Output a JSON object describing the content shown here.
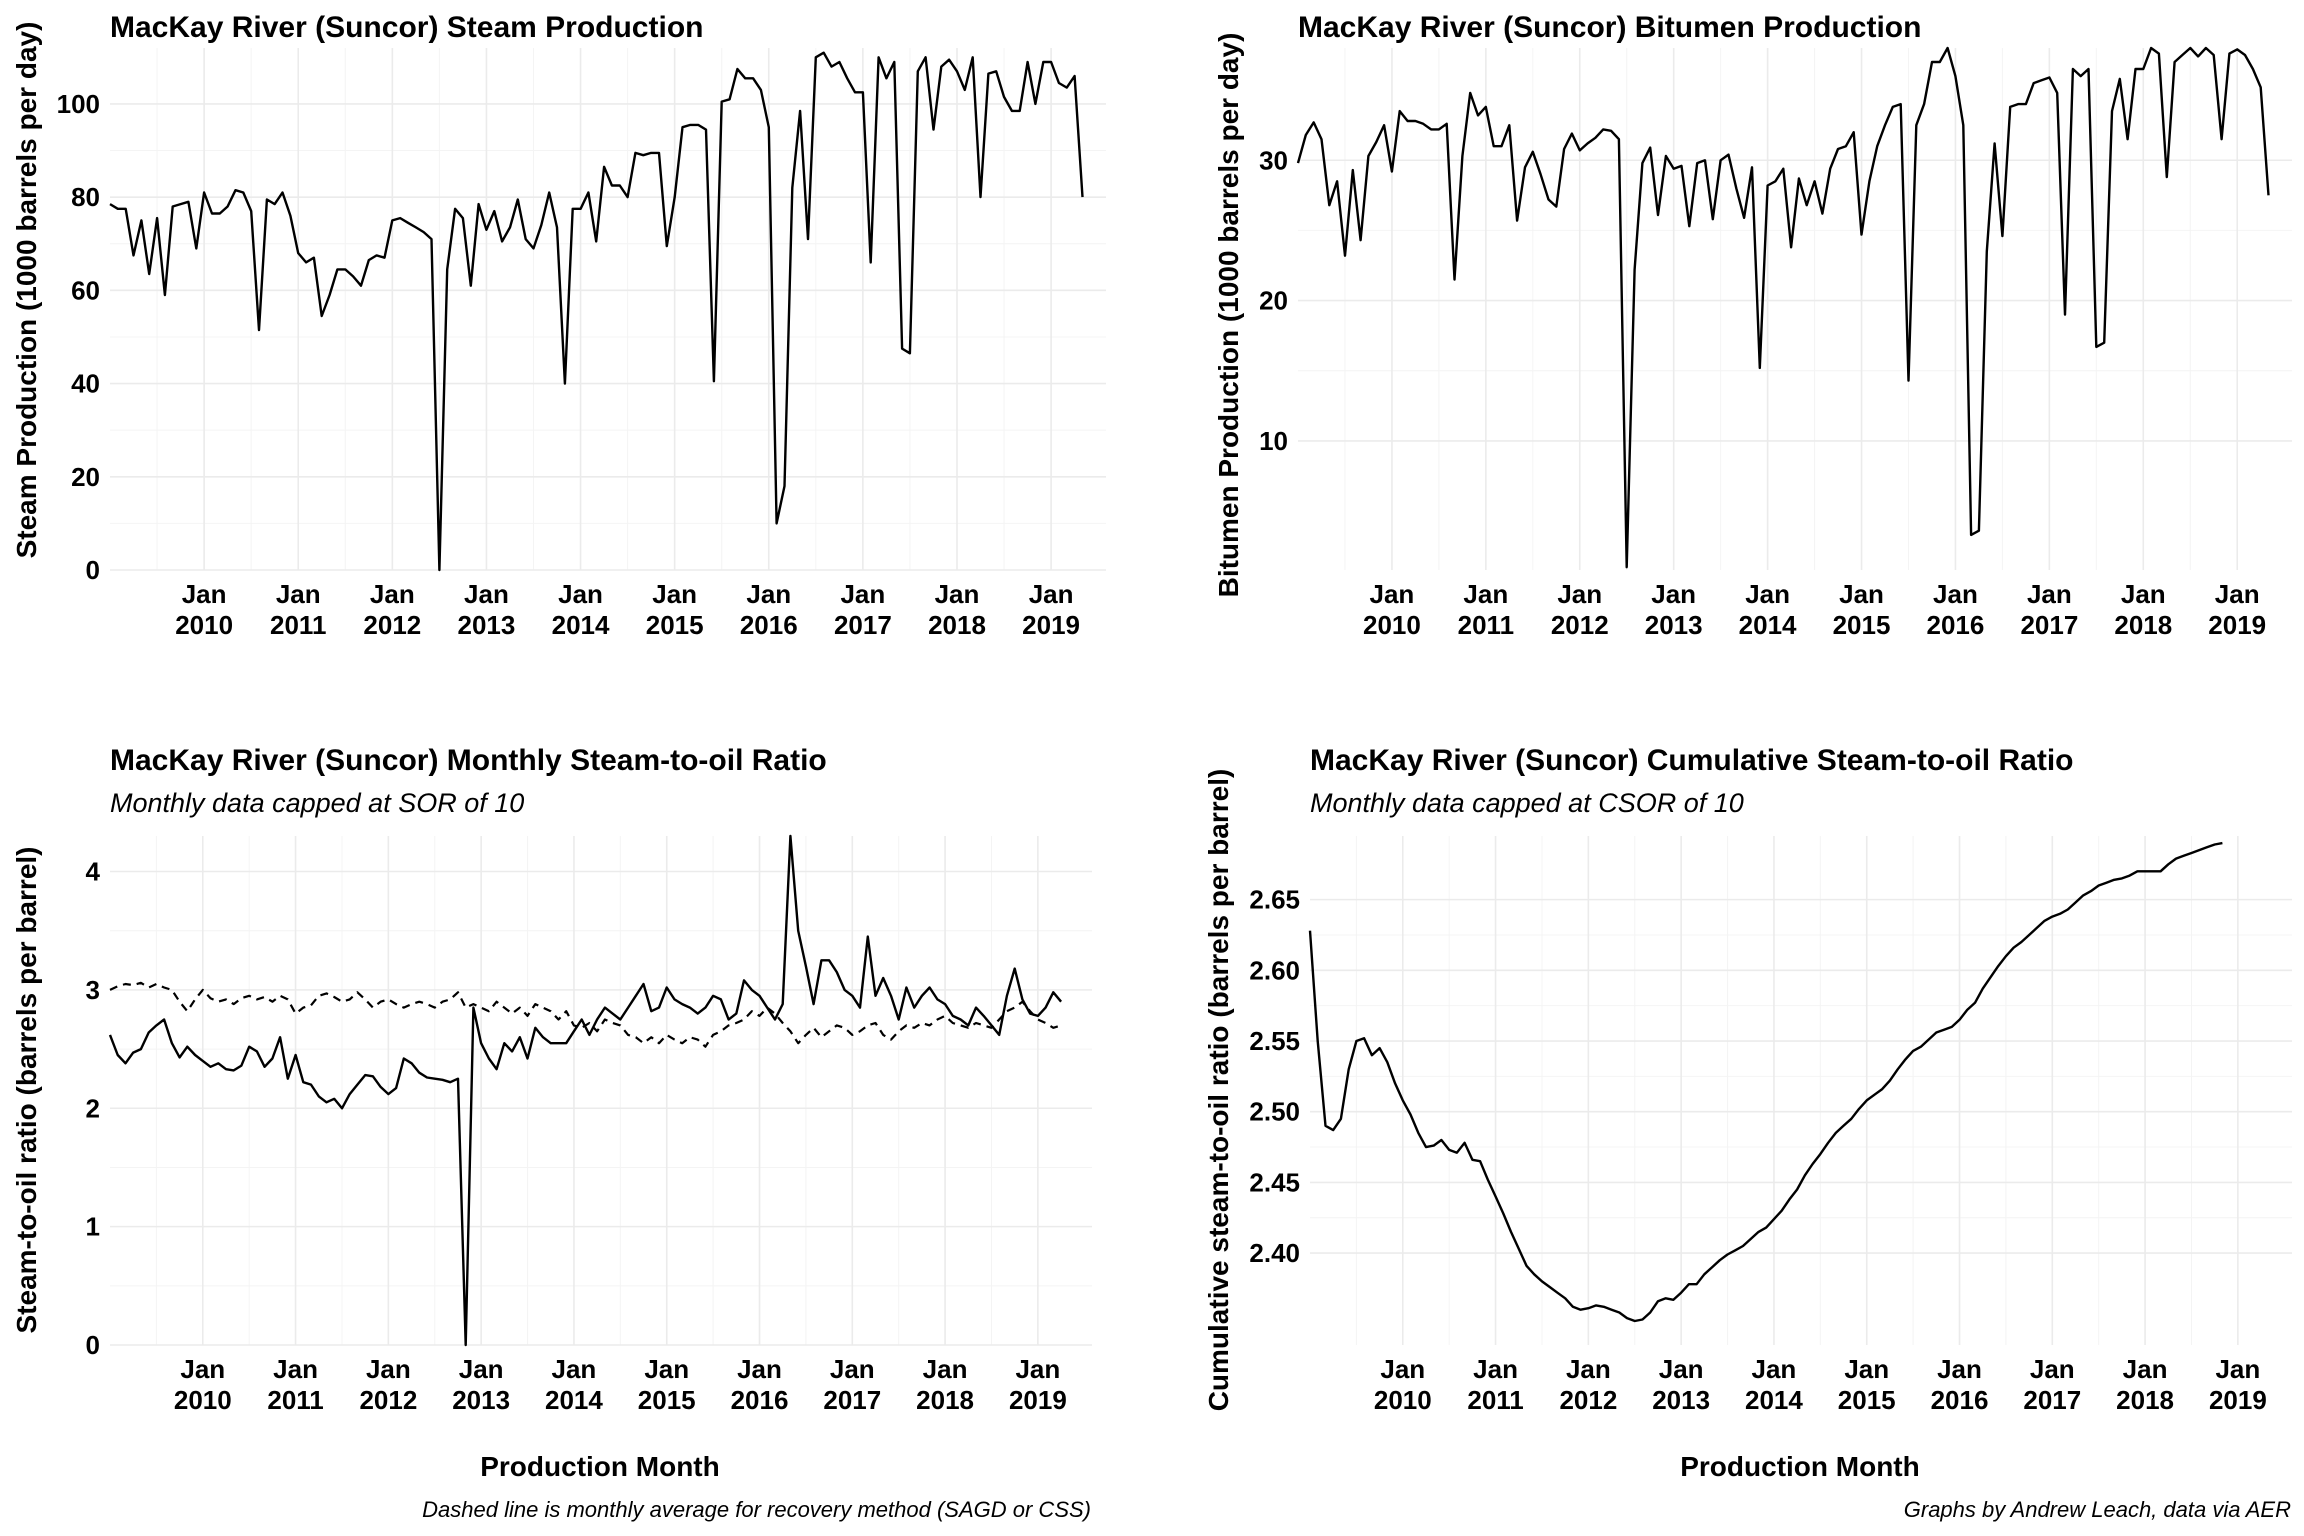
{
  "caption_left": "Dashed line is monthly average for recovery method (SAGD or CSS)",
  "caption_right": "Graphs by Andrew Leach, data via AER",
  "chart_data": [
    {
      "id": "steam",
      "type": "line",
      "title": "MacKay River (Suncor) Steam Production",
      "subtitle": "",
      "xlabel": "",
      "ylabel": "Steam Production (1000 barrels per day)",
      "x_start": "2009-01",
      "x_range": [
        "2009-01",
        "2019-08"
      ],
      "x_ticks": [
        "2010-01",
        "2011-01",
        "2012-01",
        "2013-01",
        "2014-01",
        "2015-01",
        "2016-01",
        "2017-01",
        "2018-01",
        "2019-01"
      ],
      "x_tick_labels": [
        [
          "Jan",
          "2010"
        ],
        [
          "Jan",
          "2011"
        ],
        [
          "Jan",
          "2012"
        ],
        [
          "Jan",
          "2013"
        ],
        [
          "Jan",
          "2014"
        ],
        [
          "Jan",
          "2015"
        ],
        [
          "Jan",
          "2016"
        ],
        [
          "Jan",
          "2017"
        ],
        [
          "Jan",
          "2018"
        ],
        [
          "Jan",
          "2019"
        ]
      ],
      "ylim": [
        0,
        112
      ],
      "y_ticks": [
        0,
        20,
        40,
        60,
        80,
        100
      ],
      "line_color": "#000000",
      "series": [
        {
          "dashed": false,
          "values": [
            78.5,
            77.5,
            77.5,
            67.5,
            75,
            63.5,
            75.5,
            59,
            78,
            78.5,
            79,
            69,
            81,
            76.5,
            76.5,
            78,
            81.5,
            81,
            77,
            51.5,
            79.5,
            78.5,
            81,
            76,
            68,
            66,
            67,
            54.5,
            59,
            64.5,
            64.5,
            63,
            61,
            66.5,
            67.5,
            67,
            75,
            75.5,
            74.5,
            73.5,
            72.5,
            71,
            0,
            64.5,
            77.5,
            75.5,
            61,
            78.5,
            73,
            77,
            70.5,
            73.5,
            79.5,
            71,
            69,
            74,
            81,
            73.5,
            40,
            77.5,
            77.5,
            81,
            70.5,
            86.5,
            82.5,
            82.5,
            80,
            89.5,
            89,
            89.5,
            89.5,
            69.5,
            80,
            95,
            95.5,
            95.5,
            94.5,
            40.5,
            100.5,
            101,
            107.5,
            105.5,
            105.5,
            103,
            95,
            10,
            18,
            82,
            98.5,
            71,
            110,
            111,
            108,
            109,
            105.5,
            102.5,
            102.5,
            66,
            110,
            105.5,
            109,
            47.5,
            46.5,
            107,
            110,
            94.5,
            108,
            109.5,
            107,
            103,
            110,
            80,
            106.5,
            107,
            101.5,
            98.5,
            98.5,
            109,
            100,
            109,
            109,
            104.5,
            103.5,
            106,
            80
          ]
        }
      ]
    },
    {
      "id": "bitumen",
      "type": "line",
      "title": "MacKay River (Suncor) Bitumen Production",
      "subtitle": "",
      "xlabel": "",
      "ylabel": "Bitumen Production (1000 barrels per day)",
      "x_start": "2009-01",
      "x_range": [
        "2009-01",
        "2019-08"
      ],
      "x_ticks": [
        "2010-01",
        "2011-01",
        "2012-01",
        "2013-01",
        "2014-01",
        "2015-01",
        "2016-01",
        "2017-01",
        "2018-01",
        "2019-01"
      ],
      "x_tick_labels": [
        [
          "Jan",
          "2010"
        ],
        [
          "Jan",
          "2011"
        ],
        [
          "Jan",
          "2012"
        ],
        [
          "Jan",
          "2013"
        ],
        [
          "Jan",
          "2014"
        ],
        [
          "Jan",
          "2015"
        ],
        [
          "Jan",
          "2016"
        ],
        [
          "Jan",
          "2017"
        ],
        [
          "Jan",
          "2018"
        ],
        [
          "Jan",
          "2019"
        ]
      ],
      "ylim": [
        0.8,
        38
      ],
      "y_ticks": [
        10,
        20,
        30
      ],
      "line_color": "#000000",
      "series": [
        {
          "dashed": false,
          "values": [
            29.8,
            31.8,
            32.7,
            31.5,
            26.8,
            28.5,
            23.2,
            29.3,
            24.3,
            30.3,
            31.3,
            32.5,
            29.2,
            33.5,
            32.8,
            32.8,
            32.6,
            32.2,
            32.2,
            32.6,
            21.5,
            30.3,
            34.8,
            33.2,
            33.8,
            31,
            31,
            32.5,
            25.7,
            29.5,
            30.6,
            29,
            27.2,
            26.7,
            30.8,
            31.9,
            30.7,
            31.2,
            31.6,
            32.2,
            32.1,
            31.5,
            1,
            22.2,
            29.8,
            30.9,
            26.1,
            30.3,
            29.4,
            29.6,
            25.3,
            29.8,
            30,
            25.8,
            30,
            30.4,
            28,
            25.9,
            29.5,
            15.2,
            28.2,
            28.5,
            29.4,
            23.8,
            28.7,
            26.8,
            28.5,
            26.2,
            29.4,
            30.8,
            31,
            32,
            24.7,
            28.5,
            31,
            32.5,
            33.8,
            34,
            14.3,
            32.5,
            34,
            37,
            37,
            38,
            36,
            32.5,
            3.3,
            3.6,
            23.5,
            31.2,
            24.6,
            33.8,
            34,
            34,
            35.5,
            35.7,
            35.9,
            34.8,
            19,
            36.5,
            36,
            36.5,
            16.7,
            17,
            33.5,
            35.8,
            31.5,
            36.5,
            36.5,
            38,
            37.6,
            28.8,
            37,
            37.5,
            38,
            37.4,
            38,
            37.5,
            31.5,
            37.6,
            37.9,
            37.5,
            36.5,
            35.2,
            27.5
          ]
        }
      ]
    },
    {
      "id": "sor",
      "type": "line",
      "title": "MacKay River (Suncor) Monthly Steam-to-oil Ratio",
      "subtitle": "Monthly data capped at SOR of 10",
      "xlabel": "Production Month",
      "ylabel": "Steam-to-oil ratio (barrels per barrel)",
      "x_start": "2009-01",
      "x_range": [
        "2009-01",
        "2019-08"
      ],
      "x_ticks": [
        "2010-01",
        "2011-01",
        "2012-01",
        "2013-01",
        "2014-01",
        "2015-01",
        "2016-01",
        "2017-01",
        "2018-01",
        "2019-01"
      ],
      "x_tick_labels": [
        [
          "Jan",
          "2010"
        ],
        [
          "Jan",
          "2011"
        ],
        [
          "Jan",
          "2012"
        ],
        [
          "Jan",
          "2013"
        ],
        [
          "Jan",
          "2014"
        ],
        [
          "Jan",
          "2015"
        ],
        [
          "Jan",
          "2016"
        ],
        [
          "Jan",
          "2017"
        ],
        [
          "Jan",
          "2018"
        ],
        [
          "Jan",
          "2019"
        ]
      ],
      "ylim": [
        0,
        4.3
      ],
      "y_ticks": [
        0,
        1,
        2,
        3,
        4
      ],
      "line_color": "#000000",
      "series": [
        {
          "dashed": false,
          "values": [
            2.62,
            2.45,
            2.38,
            2.47,
            2.5,
            2.64,
            2.7,
            2.75,
            2.55,
            2.43,
            2.52,
            2.45,
            2.4,
            2.35,
            2.38,
            2.33,
            2.32,
            2.36,
            2.52,
            2.48,
            2.35,
            2.42,
            2.6,
            2.25,
            2.45,
            2.22,
            2.2,
            2.1,
            2.05,
            2.08,
            2.0,
            2.12,
            2.2,
            2.28,
            2.27,
            2.18,
            2.12,
            2.17,
            2.42,
            2.38,
            2.3,
            2.26,
            2.25,
            2.24,
            2.22,
            2.25,
            0.0,
            2.85,
            2.55,
            2.42,
            2.33,
            2.55,
            2.48,
            2.6,
            2.42,
            2.68,
            2.6,
            2.55,
            2.55,
            2.55,
            2.65,
            2.75,
            2.62,
            2.75,
            2.85,
            2.8,
            2.75,
            2.85,
            2.95,
            3.05,
            2.82,
            2.85,
            3.02,
            2.92,
            2.88,
            2.85,
            2.8,
            2.85,
            2.95,
            2.92,
            2.75,
            2.8,
            3.08,
            3.0,
            2.95,
            2.85,
            2.75,
            2.88,
            4.3,
            3.5,
            3.2,
            2.88,
            3.25,
            3.25,
            3.15,
            3.0,
            2.95,
            2.85,
            3.45,
            2.95,
            3.1,
            2.95,
            2.75,
            3.02,
            2.85,
            2.95,
            3.02,
            2.92,
            2.88,
            2.78,
            2.75,
            2.7,
            2.85,
            2.78,
            2.7,
            2.62,
            2.95,
            3.18,
            2.92,
            2.8,
            2.78,
            2.85,
            2.98,
            2.9
          ]
        },
        {
          "dashed": true,
          "values": [
            3.0,
            3.03,
            3.05,
            3.04,
            3.06,
            3.02,
            3.05,
            3.02,
            3.0,
            2.9,
            2.82,
            2.92,
            3.0,
            2.93,
            2.9,
            2.92,
            2.88,
            2.93,
            2.95,
            2.92,
            2.94,
            2.9,
            2.95,
            2.92,
            2.8,
            2.85,
            2.87,
            2.95,
            2.97,
            2.94,
            2.9,
            2.92,
            2.98,
            2.92,
            2.85,
            2.9,
            2.92,
            2.88,
            2.85,
            2.88,
            2.9,
            2.88,
            2.85,
            2.9,
            2.92,
            2.98,
            2.85,
            2.88,
            2.85,
            2.82,
            2.9,
            2.85,
            2.8,
            2.85,
            2.78,
            2.88,
            2.85,
            2.82,
            2.75,
            2.82,
            2.7,
            2.68,
            2.72,
            2.65,
            2.75,
            2.72,
            2.7,
            2.62,
            2.6,
            2.55,
            2.6,
            2.55,
            2.62,
            2.58,
            2.55,
            2.6,
            2.58,
            2.52,
            2.62,
            2.65,
            2.7,
            2.72,
            2.75,
            2.82,
            2.78,
            2.85,
            2.8,
            2.72,
            2.65,
            2.55,
            2.62,
            2.68,
            2.6,
            2.65,
            2.7,
            2.68,
            2.62,
            2.65,
            2.7,
            2.72,
            2.62,
            2.58,
            2.65,
            2.7,
            2.68,
            2.72,
            2.7,
            2.75,
            2.78,
            2.72,
            2.7,
            2.68,
            2.72,
            2.7,
            2.68,
            2.75,
            2.82,
            2.85,
            2.9,
            2.82,
            2.75,
            2.72,
            2.68,
            2.7
          ]
        }
      ]
    },
    {
      "id": "csor",
      "type": "line",
      "title": "MacKay River (Suncor) Cumulative Steam-to-oil Ratio",
      "subtitle": "Monthly data capped at CSOR of 10",
      "xlabel": "Production Month",
      "ylabel": "Cumulative steam-to-oil ratio (barrels per barrel)",
      "x_start": "2009-01",
      "x_range": [
        "2009-01",
        "2019-08"
      ],
      "x_ticks": [
        "2010-01",
        "2011-01",
        "2012-01",
        "2013-01",
        "2014-01",
        "2015-01",
        "2016-01",
        "2017-01",
        "2018-01",
        "2019-01"
      ],
      "x_tick_labels": [
        [
          "Jan",
          "2010"
        ],
        [
          "Jan",
          "2011"
        ],
        [
          "Jan",
          "2012"
        ],
        [
          "Jan",
          "2013"
        ],
        [
          "Jan",
          "2014"
        ],
        [
          "Jan",
          "2015"
        ],
        [
          "Jan",
          "2016"
        ],
        [
          "Jan",
          "2017"
        ],
        [
          "Jan",
          "2018"
        ],
        [
          "Jan",
          "2019"
        ]
      ],
      "ylim": [
        2.335,
        2.695
      ],
      "y_ticks": [
        2.4,
        2.45,
        2.5,
        2.55,
        2.6,
        2.65
      ],
      "y_tick_labels": [
        "2.40",
        "2.45",
        "2.50",
        "2.55",
        "2.60",
        "2.65"
      ],
      "line_color": "#000000",
      "series": [
        {
          "dashed": false,
          "values": [
            2.628,
            2.55,
            2.49,
            2.487,
            2.495,
            2.53,
            2.55,
            2.552,
            2.54,
            2.545,
            2.535,
            2.52,
            2.508,
            2.498,
            2.485,
            2.475,
            2.476,
            2.48,
            2.473,
            2.471,
            2.478,
            2.466,
            2.465,
            2.452,
            2.44,
            2.428,
            2.415,
            2.403,
            2.391,
            2.385,
            2.38,
            2.376,
            2.372,
            2.368,
            2.362,
            2.36,
            2.361,
            2.363,
            2.362,
            2.36,
            2.358,
            2.354,
            2.352,
            2.353,
            2.358,
            2.366,
            2.368,
            2.367,
            2.372,
            2.378,
            2.378,
            2.385,
            2.39,
            2.395,
            2.399,
            2.402,
            2.405,
            2.41,
            2.415,
            2.418,
            2.424,
            2.43,
            2.438,
            2.445,
            2.455,
            2.463,
            2.47,
            2.478,
            2.485,
            2.49,
            2.495,
            2.502,
            2.508,
            2.512,
            2.516,
            2.522,
            2.53,
            2.537,
            2.543,
            2.546,
            2.551,
            2.556,
            2.558,
            2.56,
            2.565,
            2.572,
            2.577,
            2.587,
            2.595,
            2.603,
            2.61,
            2.616,
            2.62,
            2.625,
            2.63,
            2.635,
            2.638,
            2.64,
            2.643,
            2.648,
            2.653,
            2.656,
            2.66,
            2.662,
            2.664,
            2.665,
            2.667,
            2.67,
            2.67,
            2.67,
            2.67,
            2.675,
            2.679,
            2.681,
            2.683,
            2.685,
            2.687,
            2.689,
            2.69
          ]
        }
      ]
    }
  ]
}
